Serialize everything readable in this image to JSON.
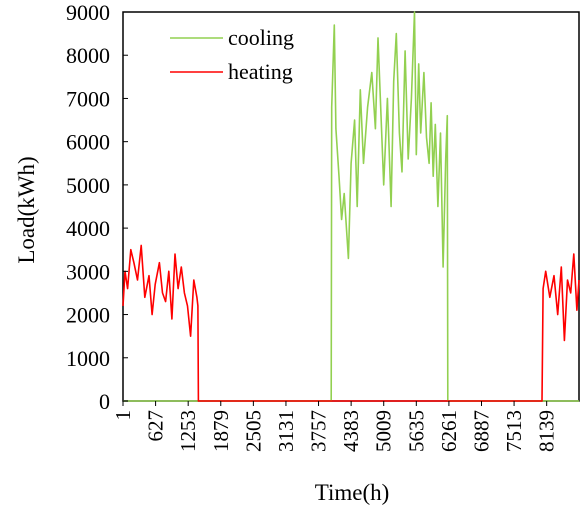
{
  "chart_data": {
    "type": "line",
    "xlabel": "Time(h)",
    "ylabel": "Load(kWh)",
    "xlim": [
      1,
      8760
    ],
    "ylim": [
      0,
      9000
    ],
    "xticks": [
      1,
      627,
      1253,
      1879,
      2505,
      3131,
      3757,
      4383,
      5009,
      5635,
      6261,
      6887,
      7513,
      8139
    ],
    "yticks": [
      0,
      1000,
      2000,
      3000,
      4000,
      5000,
      6000,
      7000,
      8000,
      9000
    ],
    "grid": false,
    "legend_position": "top-left",
    "series": [
      {
        "name": "cooling",
        "color": "#92d050",
        "x": [
          1,
          4000,
          4010,
          4060,
          4090,
          4150,
          4200,
          4250,
          4330,
          4383,
          4450,
          4500,
          4560,
          4620,
          4700,
          4780,
          4850,
          4900,
          5009,
          5080,
          5150,
          5200,
          5250,
          5310,
          5360,
          5420,
          5480,
          5540,
          5600,
          5635,
          5680,
          5720,
          5780,
          5830,
          5880,
          5920,
          5960,
          6000,
          6050,
          6100,
          6150,
          6200,
          6230,
          6240,
          8760
        ],
        "y": [
          0,
          0,
          6800,
          8700,
          6300,
          5200,
          4200,
          4800,
          3300,
          5500,
          6500,
          4500,
          7200,
          5500,
          6800,
          7600,
          6300,
          8400,
          5000,
          7000,
          4500,
          7400,
          8500,
          6200,
          5300,
          8100,
          5600,
          7000,
          9000,
          5700,
          7800,
          6200,
          7600,
          6100,
          5500,
          6900,
          5200,
          6400,
          4500,
          6200,
          3100,
          5600,
          6600,
          0,
          0
        ]
      },
      {
        "name": "heating",
        "color": "#ff0000",
        "x": [
          1,
          40,
          90,
          150,
          210,
          280,
          350,
          420,
          500,
          560,
          620,
          700,
          760,
          820,
          880,
          940,
          1000,
          1060,
          1120,
          1180,
          1240,
          1300,
          1360,
          1420,
          1440,
          1450,
          8050,
          8070,
          8120,
          8200,
          8280,
          8350,
          8420,
          8480,
          8540,
          8600,
          8660,
          8720,
          8760
        ],
        "y": [
          2200,
          3000,
          2600,
          3500,
          3200,
          2800,
          3600,
          2400,
          2900,
          2000,
          2700,
          3200,
          2500,
          2300,
          3000,
          1900,
          3400,
          2600,
          3100,
          2500,
          2200,
          1500,
          2800,
          2400,
          2200,
          0,
          0,
          2600,
          3000,
          2400,
          2900,
          2000,
          3100,
          1400,
          2800,
          2500,
          3400,
          2100,
          2800
        ]
      }
    ]
  }
}
